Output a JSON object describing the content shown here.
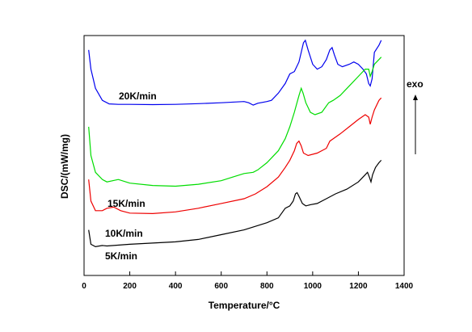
{
  "chart_data": {
    "type": "line",
    "title": "",
    "xlabel": "Temperature/°C",
    "ylabel": "DSC/(mW/mg)",
    "xlim": [
      0,
      1400
    ],
    "x_ticks": [
      0,
      200,
      400,
      600,
      800,
      1000,
      1200,
      1400
    ],
    "y_ticks_shown": false,
    "grid": false,
    "annotation": "exo",
    "annotation_arrow": "up",
    "series": [
      {
        "name": "20K/min",
        "color": "#0000ee",
        "points": [
          [
            20,
            0.94
          ],
          [
            30,
            0.86
          ],
          [
            50,
            0.78
          ],
          [
            80,
            0.73
          ],
          [
            110,
            0.715
          ],
          [
            150,
            0.713
          ],
          [
            200,
            0.713
          ],
          [
            300,
            0.712
          ],
          [
            400,
            0.713
          ],
          [
            500,
            0.716
          ],
          [
            600,
            0.72
          ],
          [
            700,
            0.725
          ],
          [
            720,
            0.72
          ],
          [
            740,
            0.71
          ],
          [
            760,
            0.718
          ],
          [
            800,
            0.725
          ],
          [
            820,
            0.73
          ],
          [
            850,
            0.76
          ],
          [
            880,
            0.8
          ],
          [
            900,
            0.84
          ],
          [
            920,
            0.85
          ],
          [
            940,
            0.89
          ],
          [
            960,
            0.97
          ],
          [
            968,
            0.98
          ],
          [
            980,
            0.94
          ],
          [
            1000,
            0.88
          ],
          [
            1020,
            0.86
          ],
          [
            1040,
            0.87
          ],
          [
            1060,
            0.9
          ],
          [
            1075,
            0.94
          ],
          [
            1085,
            0.95
          ],
          [
            1095,
            0.92
          ],
          [
            1110,
            0.88
          ],
          [
            1130,
            0.87
          ],
          [
            1160,
            0.88
          ],
          [
            1180,
            0.89
          ],
          [
            1200,
            0.88
          ],
          [
            1220,
            0.86
          ],
          [
            1235,
            0.84
          ],
          [
            1245,
            0.8
          ],
          [
            1252,
            0.79
          ],
          [
            1260,
            0.82
          ],
          [
            1270,
            0.93
          ],
          [
            1290,
            0.96
          ],
          [
            1300,
            0.98
          ]
        ]
      },
      {
        "name": "15K/min",
        "color": "#00dd00",
        "points": [
          [
            20,
            0.62
          ],
          [
            30,
            0.5
          ],
          [
            50,
            0.43
          ],
          [
            80,
            0.4
          ],
          [
            100,
            0.39
          ],
          [
            150,
            0.4
          ],
          [
            200,
            0.385
          ],
          [
            300,
            0.375
          ],
          [
            400,
            0.372
          ],
          [
            500,
            0.38
          ],
          [
            600,
            0.395
          ],
          [
            650,
            0.41
          ],
          [
            700,
            0.425
          ],
          [
            740,
            0.43
          ],
          [
            760,
            0.44
          ],
          [
            800,
            0.47
          ],
          [
            850,
            0.52
          ],
          [
            880,
            0.57
          ],
          [
            900,
            0.62
          ],
          [
            920,
            0.68
          ],
          [
            940,
            0.75
          ],
          [
            950,
            0.78
          ],
          [
            958,
            0.76
          ],
          [
            970,
            0.72
          ],
          [
            990,
            0.68
          ],
          [
            1010,
            0.67
          ],
          [
            1040,
            0.68
          ],
          [
            1070,
            0.72
          ],
          [
            1090,
            0.73
          ],
          [
            1120,
            0.75
          ],
          [
            1160,
            0.79
          ],
          [
            1190,
            0.82
          ],
          [
            1210,
            0.84
          ],
          [
            1230,
            0.86
          ],
          [
            1245,
            0.86
          ],
          [
            1252,
            0.83
          ],
          [
            1260,
            0.85
          ],
          [
            1270,
            0.88
          ],
          [
            1290,
            0.9
          ],
          [
            1300,
            0.91
          ]
        ]
      },
      {
        "name": "10K/min",
        "color": "#ee0000",
        "points": [
          [
            20,
            0.4
          ],
          [
            30,
            0.31
          ],
          [
            50,
            0.27
          ],
          [
            80,
            0.27
          ],
          [
            100,
            0.28
          ],
          [
            130,
            0.285
          ],
          [
            160,
            0.27
          ],
          [
            200,
            0.26
          ],
          [
            300,
            0.258
          ],
          [
            400,
            0.265
          ],
          [
            500,
            0.28
          ],
          [
            600,
            0.3
          ],
          [
            700,
            0.32
          ],
          [
            750,
            0.34
          ],
          [
            800,
            0.37
          ],
          [
            850,
            0.41
          ],
          [
            880,
            0.45
          ],
          [
            900,
            0.48
          ],
          [
            920,
            0.52
          ],
          [
            930,
            0.55
          ],
          [
            940,
            0.56
          ],
          [
            950,
            0.54
          ],
          [
            960,
            0.51
          ],
          [
            980,
            0.5
          ],
          [
            1020,
            0.51
          ],
          [
            1060,
            0.53
          ],
          [
            1075,
            0.56
          ],
          [
            1090,
            0.57
          ],
          [
            1120,
            0.59
          ],
          [
            1160,
            0.62
          ],
          [
            1200,
            0.65
          ],
          [
            1230,
            0.67
          ],
          [
            1245,
            0.66
          ],
          [
            1252,
            0.63
          ],
          [
            1260,
            0.66
          ],
          [
            1270,
            0.69
          ],
          [
            1290,
            0.73
          ],
          [
            1300,
            0.74
          ]
        ]
      },
      {
        "name": "5K/min",
        "color": "#000000",
        "points": [
          [
            20,
            0.19
          ],
          [
            30,
            0.13
          ],
          [
            50,
            0.12
          ],
          [
            80,
            0.125
          ],
          [
            100,
            0.123
          ],
          [
            200,
            0.13
          ],
          [
            300,
            0.135
          ],
          [
            400,
            0.14
          ],
          [
            500,
            0.15
          ],
          [
            600,
            0.17
          ],
          [
            700,
            0.19
          ],
          [
            800,
            0.22
          ],
          [
            850,
            0.24
          ],
          [
            880,
            0.28
          ],
          [
            900,
            0.29
          ],
          [
            915,
            0.31
          ],
          [
            925,
            0.34
          ],
          [
            932,
            0.345
          ],
          [
            940,
            0.33
          ],
          [
            955,
            0.3
          ],
          [
            970,
            0.29
          ],
          [
            990,
            0.295
          ],
          [
            1020,
            0.3
          ],
          [
            1060,
            0.32
          ],
          [
            1100,
            0.34
          ],
          [
            1150,
            0.36
          ],
          [
            1200,
            0.39
          ],
          [
            1230,
            0.42
          ],
          [
            1240,
            0.43
          ],
          [
            1248,
            0.41
          ],
          [
            1255,
            0.39
          ],
          [
            1262,
            0.42
          ],
          [
            1275,
            0.45
          ],
          [
            1290,
            0.47
          ],
          [
            1300,
            0.48
          ]
        ]
      }
    ]
  }
}
